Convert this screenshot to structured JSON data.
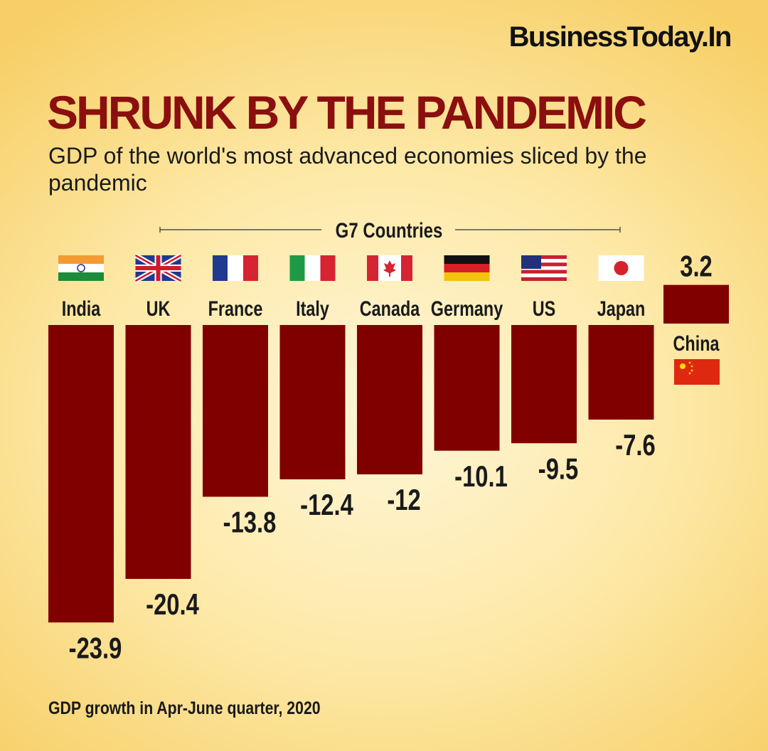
{
  "brand": "BusinessToday.In",
  "title": "SHRUNK BY THE PANDEMIC",
  "subtitle": "GDP of the world's most advanced economies sliced by the pandemic",
  "footnote": "GDP growth in Apr-June quarter, 2020",
  "colors": {
    "bar": "#800000",
    "title": "#8b0f0f",
    "text": "#1a1a1a"
  },
  "chart_data": {
    "type": "bar",
    "title": "SHRUNK BY THE PANDEMIC",
    "subtitle": "GDP of the world's most advanced economies sliced by the pandemic",
    "group_label": "G7 Countries",
    "group_members": [
      "UK",
      "France",
      "Italy",
      "Canada",
      "Germany",
      "US",
      "Japan"
    ],
    "categories": [
      "India",
      "UK",
      "France",
      "Italy",
      "Canada",
      "Germany",
      "US",
      "Japan",
      "China"
    ],
    "values": [
      -23.9,
      -20.4,
      -13.8,
      -12.4,
      -12,
      -10.1,
      -9.5,
      -7.6,
      3.2
    ],
    "value_labels": [
      "-23.9",
      "-20.4",
      "-13.8",
      "-12.4",
      "-12",
      "-10.1",
      "-9.5",
      "-7.6",
      "3.2"
    ],
    "flags": [
      "india-flag-icon",
      "uk-flag-icon",
      "france-flag-icon",
      "italy-flag-icon",
      "canada-flag-icon",
      "germany-flag-icon",
      "us-flag-icon",
      "japan-flag-icon",
      "china-flag-icon"
    ],
    "xlabel": "",
    "ylabel": "GDP growth in Apr-June quarter, 2020",
    "grid": false,
    "legend": "none"
  }
}
